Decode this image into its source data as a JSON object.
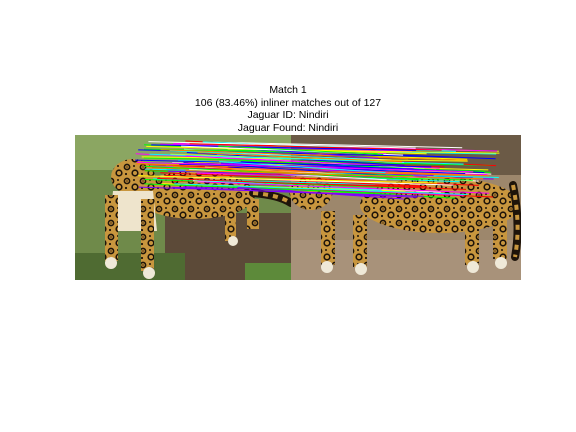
{
  "figure": {
    "title_lines": [
      "Match 1",
      "106 (83.46%) inliner matches out of 127",
      "Jaguar ID: Nindiri",
      "Jaguar Found: Nindiri"
    ],
    "inliner_matches": 106,
    "total_matches": 127,
    "inliner_percent": 83.46,
    "left_image": {
      "subject": "jaguar",
      "background": "grass-and-dirt"
    },
    "right_image": {
      "subject": "jaguar",
      "background": "dirt-ground"
    },
    "match_line_colors": [
      "#ff0000",
      "#00ff00",
      "#0000ff",
      "#ffff00",
      "#ff00ff",
      "#00ffff",
      "#7f00ff",
      "#ff7f00",
      "#ffffff"
    ]
  }
}
